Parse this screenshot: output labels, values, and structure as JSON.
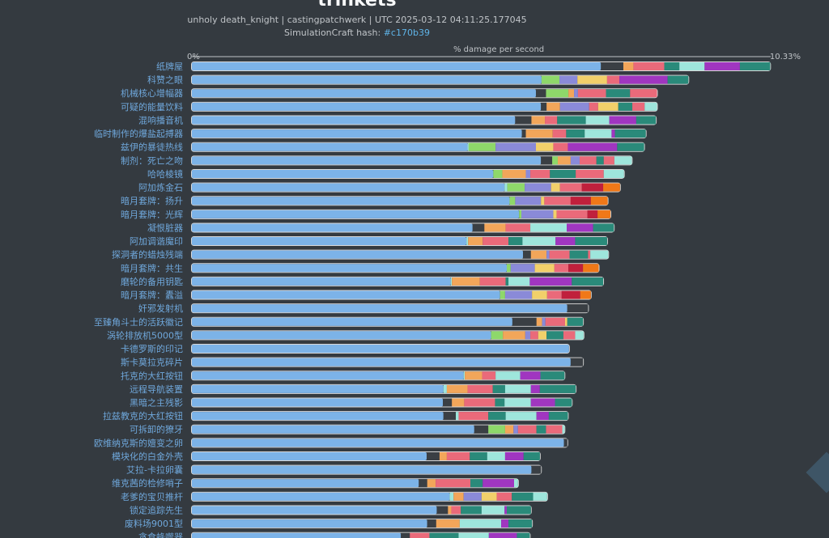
{
  "header": {
    "title": "trinkets",
    "subtitle": "unholy death_knight | castingpatchwerk | UTC 2025-03-12 04:11:25.177045",
    "hash_label": "SimulationCraft hash: ",
    "hash_value": "#c170b39"
  },
  "colors": {
    "background": "#343a40",
    "base": "#7cb3e8",
    "bar_outline": "#d8d8d8",
    "label": "#6fa8dc",
    "segments": [
      "#3a3f44",
      "#f2a65a",
      "#ea6a7a",
      "#2a8a7a",
      "#9ee6dc",
      "#a036c0",
      "#f2d06a",
      "#8a8ad8",
      "#8ed86a",
      "#c0203c",
      "#f07818"
    ]
  },
  "chart_data": {
    "type": "bar",
    "orientation": "horizontal",
    "stacked": true,
    "title": "% damage per second",
    "xlim": [
      0,
      10.33
    ],
    "x_tick_labels": [
      "0%",
      "10.33%"
    ],
    "categories": [
      "纸牌屋",
      "科赞之眼",
      "机械核心增幅器",
      "可疑的能量饮料",
      "混响播音机",
      "临时制作的爆盐起搏器",
      "兹伊的暴徒热线",
      "制剂：死亡之吻",
      "哈哈棱镜",
      "阿加炼金石",
      "暗月套牌：扬升",
      "暗月套牌：光辉",
      "凝恨脏器",
      "阿加调谐魔印",
      "探洞者的蜡烛残端",
      "暗月套牌：共生",
      "磨轮的备用钥匙",
      "暗月套牌：蠹溢",
      "奸邪发射机",
      "至臻角斗士的活跃徽记",
      "涡轮排放机5000型",
      "卡德罗斯的印记",
      "斯卡莫拉克碎片",
      "托克的大红按钮",
      "远程导航装置",
      "黑暗之主残影",
      "拉兹教克的大红按钮",
      "可拆卸的獠牙",
      "欧维纳克斯的嬗变之卵",
      "模块化的白金外壳",
      "艾拉-卡拉卵囊",
      "维克茜的检修哨子",
      "老爹的宝贝推杆",
      "锁定追踪先生",
      "废料场9001型",
      "贪食蜂噬器"
    ],
    "base_values": [
      7.3,
      6.24,
      6.14,
      6.23,
      5.77,
      5.89,
      4.92,
      6.23,
      5.38,
      5.58,
      5.67,
      5.84,
      5.01,
      4.9,
      5.91,
      5.62,
      4.62,
      5.5,
      6.7,
      5.72,
      5.34,
      6.73,
      6.76,
      4.85,
      4.49,
      4.48,
      4.49,
      5.04,
      6.64,
      4.19,
      6.06,
      4.05,
      4.6,
      4.37,
      4.2,
      3.73
    ],
    "increments": [
      [
        0.4,
        0.18,
        0.55,
        0.27,
        0.45,
        0.63,
        0.54
      ],
      [
        0.32,
        0.32,
        0.53,
        0.22,
        0.86,
        0.37
      ],
      [
        0.18,
        0.4,
        0.1,
        0.07,
        0.5,
        0.43,
        0.48
      ],
      [
        0.1,
        0.24,
        0.52,
        0.16,
        0.36,
        0.25,
        0.22,
        0.22
      ],
      [
        0.29,
        0.24,
        0.22,
        0.51,
        0.42,
        0.48,
        0.35
      ],
      [
        0.07,
        0.48,
        0.24,
        0.33,
        0.48,
        0.06,
        0.55
      ],
      [
        0.02,
        0.48,
        0.72,
        0.31,
        0.26,
        0.88,
        0.48
      ],
      [
        0.2,
        0.1,
        0.23,
        0.16,
        0.3,
        0.13,
        0.19,
        0.31
      ],
      [
        0.16,
        0.42,
        0.08,
        0.35,
        0.46,
        0.5,
        0.36
      ],
      [
        0.05,
        0.31,
        0.47,
        0.16,
        0.39,
        0.38,
        0.3
      ],
      [
        0.1,
        0.46,
        0.06,
        0.47,
        0.36,
        0.3
      ],
      [
        0.04,
        0.57,
        0.06,
        0.55,
        0.18,
        0.23
      ],
      [
        0.21,
        0.38,
        0.44,
        0.65,
        0.47,
        0.37
      ],
      [
        0.03,
        0.26,
        0.46,
        0.25,
        0.59,
        0.35,
        0.57
      ],
      [
        0.14,
        0.28,
        0.05,
        0.36,
        0.33,
        0.04,
        0.32
      ],
      [
        0.07,
        0.43,
        0.35,
        0.25,
        0.26,
        0.28
      ],
      [
        0.02,
        0.5,
        0.46,
        0.05,
        0.38,
        0.75,
        0.56
      ],
      [
        0.09,
        0.48,
        0.27,
        0.26,
        0.33,
        0.19
      ],
      [
        0.37
      ],
      [
        0.43,
        0.1,
        0.06,
        0.35,
        0.04,
        0.28
      ],
      [
        0.21,
        0.4,
        0.09,
        0.14,
        0.15,
        0.3,
        0.21,
        0.15
      ],
      [
        0.0
      ],
      [
        0.22
      ],
      [
        0.02,
        0.31,
        0.24,
        0.44,
        0.36,
        0.43
      ],
      [
        0.06,
        0.37,
        0.45,
        0.22,
        0.46,
        0.16,
        0.64
      ],
      [
        0.16,
        0.22,
        0.55,
        0.17,
        0.47,
        0.43,
        0.3
      ],
      [
        0.22,
        0.05,
        0.53,
        0.31,
        0.55,
        0.22,
        0.34
      ],
      [
        0.25,
        0.3,
        0.15,
        0.08,
        0.33,
        0.17,
        0.29,
        0.04
      ],
      [
        0.06
      ],
      [
        0.23,
        0.13,
        0.41,
        0.31,
        0.32,
        0.33,
        0.29
      ],
      [
        0.17
      ],
      [
        0.15,
        0.15,
        0.62,
        0.22,
        0.56,
        0.07
      ],
      [
        0.07,
        0.18,
        0.32,
        0.27,
        0.27,
        0.38,
        0.25
      ],
      [
        0.2,
        0.06,
        0.17,
        0.37,
        0.41,
        0.04,
        0.43
      ],
      [
        0.16,
        0.42,
        0.74,
        0.13,
        0.42
      ],
      [
        0.16,
        0.35,
        0.52,
        0.54,
        0.5,
        0.23
      ]
    ],
    "segment_colors": [
      [
        "#3a3f44",
        "#f2a65a",
        "#ea6a7a",
        "#2a8a7a",
        "#9ee6dc",
        "#a036c0",
        "#2a8a7a"
      ],
      [
        "#8ed86a",
        "#8a8ad8",
        "#f2d06a",
        "#ea6a7a",
        "#a036c0",
        "#2a8a7a"
      ],
      [
        "#3a3f44",
        "#8ed86a",
        "#f2a65a",
        "#8a8ad8",
        "#ea6a7a",
        "#2a8a7a",
        "#ea6a7a"
      ],
      [
        "#3a3f44",
        "#f2a65a",
        "#8a8ad8",
        "#ea6a7a",
        "#f2d06a",
        "#2a8a7a",
        "#ea6a7a",
        "#9ee6dc"
      ],
      [
        "#3a3f44",
        "#f2a65a",
        "#ea6a7a",
        "#2a8a7a",
        "#9ee6dc",
        "#a036c0",
        "#2a8a7a"
      ],
      [
        "#3a3f44",
        "#f2a65a",
        "#ea6a7a",
        "#2a8a7a",
        "#9ee6dc",
        "#a036c0",
        "#2a8a7a"
      ],
      [
        "#9ee6dc",
        "#8ed86a",
        "#8a8ad8",
        "#f2d06a",
        "#ea6a7a",
        "#a036c0",
        "#2a8a7a"
      ],
      [
        "#3a3f44",
        "#8ed86a",
        "#f2a65a",
        "#8a8ad8",
        "#ea6a7a",
        "#2a8a7a",
        "#ea6a7a",
        "#9ee6dc"
      ],
      [
        "#8ed86a",
        "#f2a65a",
        "#8a8ad8",
        "#ea6a7a",
        "#2a8a7a",
        "#ea6a7a",
        "#9ee6dc"
      ],
      [
        "#9ee6dc",
        "#8ed86a",
        "#8a8ad8",
        "#f2d06a",
        "#ea6a7a",
        "#c0203c",
        "#f07818"
      ],
      [
        "#8ed86a",
        "#8a8ad8",
        "#f2d06a",
        "#ea6a7a",
        "#c0203c",
        "#f07818"
      ],
      [
        "#8ed86a",
        "#8a8ad8",
        "#f2d06a",
        "#ea6a7a",
        "#c0203c",
        "#f07818"
      ],
      [
        "#3a3f44",
        "#f2a65a",
        "#ea6a7a",
        "#9ee6dc",
        "#a036c0",
        "#2a8a7a"
      ],
      [
        "#9ee6dc",
        "#f2a65a",
        "#ea6a7a",
        "#2a8a7a",
        "#9ee6dc",
        "#a036c0",
        "#2a8a7a"
      ],
      [
        "#3a3f44",
        "#f2a65a",
        "#8a8ad8",
        "#ea6a7a",
        "#2a8a7a",
        "#ea6a7a",
        "#9ee6dc"
      ],
      [
        "#8ed86a",
        "#8a8ad8",
        "#f2d06a",
        "#ea6a7a",
        "#c0203c",
        "#f07818"
      ],
      [
        "#9ee6dc",
        "#f2a65a",
        "#ea6a7a",
        "#2a8a7a",
        "#9ee6dc",
        "#a036c0",
        "#2a8a7a"
      ],
      [
        "#8ed86a",
        "#8a8ad8",
        "#f2d06a",
        "#ea6a7a",
        "#c0203c",
        "#f07818"
      ],
      [
        "#3a3f44"
      ],
      [
        "#3a3f44",
        "#f2a65a",
        "#8a8ad8",
        "#ea6a7a",
        "#f2d06a",
        "#2a8a7a"
      ],
      [
        "#8ed86a",
        "#f2a65a",
        "#8a8ad8",
        "#ea6a7a",
        "#f2d06a",
        "#2a8a7a",
        "#ea6a7a",
        "#9ee6dc"
      ],
      [
        "#3a3f44"
      ],
      [
        "#3a3f44"
      ],
      [
        "#9ee6dc",
        "#f2a65a",
        "#ea6a7a",
        "#9ee6dc",
        "#a036c0",
        "#2a8a7a"
      ],
      [
        "#9ee6dc",
        "#f2a65a",
        "#ea6a7a",
        "#2a8a7a",
        "#9ee6dc",
        "#a036c0",
        "#2a8a7a"
      ],
      [
        "#3a3f44",
        "#f2a65a",
        "#ea6a7a",
        "#2a8a7a",
        "#9ee6dc",
        "#a036c0",
        "#2a8a7a"
      ],
      [
        "#3a3f44",
        "#9ee6dc",
        "#ea6a7a",
        "#2a8a7a",
        "#9ee6dc",
        "#a036c0",
        "#2a8a7a"
      ],
      [
        "#3a3f44",
        "#8ed86a",
        "#f2a65a",
        "#8a8ad8",
        "#ea6a7a",
        "#2a8a7a",
        "#ea6a7a",
        "#9ee6dc"
      ],
      [
        "#3a3f44"
      ],
      [
        "#3a3f44",
        "#f2a65a",
        "#ea6a7a",
        "#2a8a7a",
        "#9ee6dc",
        "#a036c0",
        "#2a8a7a"
      ],
      [
        "#3a3f44"
      ],
      [
        "#3a3f44",
        "#f2a65a",
        "#ea6a7a",
        "#2a8a7a",
        "#a036c0",
        "#9ee6dc"
      ],
      [
        "#9ee6dc",
        "#f2a65a",
        "#8a8ad8",
        "#f2d06a",
        "#ea6a7a",
        "#2a8a7a",
        "#9ee6dc"
      ],
      [
        "#3a3f44",
        "#f2a65a",
        "#ea6a7a",
        "#2a8a7a",
        "#9ee6dc",
        "#a036c0",
        "#2a8a7a"
      ],
      [
        "#3a3f44",
        "#f2a65a",
        "#9ee6dc",
        "#a036c0",
        "#2a8a7a"
      ],
      [
        "#3a3f44",
        "#ea6a7a",
        "#2a8a7a",
        "#9ee6dc",
        "#a036c0",
        "#2a8a7a"
      ]
    ]
  }
}
